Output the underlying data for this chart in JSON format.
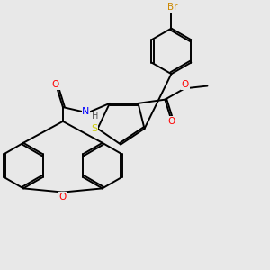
{
  "background_color": "#e8e8e8",
  "fig_size": [
    3.0,
    3.0
  ],
  "dpi": 100,
  "atom_colors": {
    "S": "#cccc00",
    "N": "#0000ff",
    "O": "#ff0000",
    "Br": "#cc8800",
    "C": "#000000",
    "H": "#555555"
  },
  "bond_color": "#000000",
  "bond_width": 1.4
}
